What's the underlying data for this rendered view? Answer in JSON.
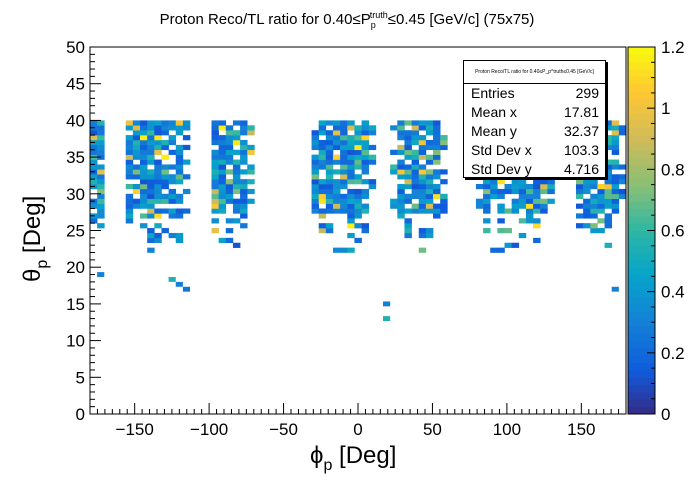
{
  "chart_data": {
    "type": "heatmap",
    "title": "Proton Reco/TL ratio for 0.40≤P_p^truth≤0.45 [GeV/c] (75x75)",
    "title_parts": {
      "prefix": "Proton Reco/TL ratio for 0.40≤P",
      "sub": "p",
      "sup": "truth",
      "suffix": "≤0.45 [GeV/c] (75x75)"
    },
    "xlabel": "ϕp [Deg]",
    "xlabel_parts": {
      "main": "ϕ",
      "sub": "p",
      "rest": " [Deg]"
    },
    "ylabel": "θp [Deg]",
    "ylabel_parts": {
      "main": "θ",
      "sub": "p",
      "rest": " [Deg]"
    },
    "xlim": [
      -180,
      180
    ],
    "ylim": [
      0,
      50
    ],
    "zlim": [
      0,
      1.2
    ],
    "x_ticks": [
      -150,
      -100,
      -50,
      0,
      50,
      100,
      150
    ],
    "x_tick_labels": [
      "−150",
      "−100",
      "−50",
      "0",
      "50",
      "100",
      "150"
    ],
    "y_ticks": [
      0,
      5,
      10,
      15,
      20,
      25,
      30,
      35,
      40,
      45,
      50
    ],
    "y_tick_labels": [
      "0",
      "5",
      "10",
      "15",
      "20",
      "25",
      "30",
      "35",
      "40",
      "45",
      "50"
    ],
    "z_ticks": [
      0,
      0.2,
      0.4,
      0.6,
      0.8,
      1,
      1.2
    ],
    "z_tick_labels": [
      "0",
      "0.2",
      "0.4",
      "0.6",
      "0.8",
      "1",
      "1.2"
    ],
    "colormap": "kBird",
    "bins": {
      "nx": 75,
      "ny": 75
    },
    "sectors_phi_ranges": [
      [
        -180,
        -170
      ],
      [
        -158,
        -112
      ],
      [
        -100,
        -72
      ],
      [
        -32,
        10
      ],
      [
        22,
        58
      ],
      [
        80,
        130
      ],
      [
        145,
        180
      ]
    ],
    "theta_range_populated": [
      17,
      40
    ],
    "isolated_points": [
      {
        "x": -127,
        "y": 18.5,
        "z": 0.55
      },
      {
        "x": -122,
        "y": 17.7,
        "z": 0.3
      },
      {
        "x": -115,
        "y": 17.0,
        "z": 0.25
      },
      {
        "x": 18,
        "y": 15.0,
        "z": 0.3
      },
      {
        "x": 18,
        "y": 13.0,
        "z": 0.55
      },
      {
        "x": -175,
        "y": 19.0,
        "z": 0.3
      },
      {
        "x": 175,
        "y": 17.0,
        "z": 0.3
      }
    ],
    "stats": {
      "title": "Proton Reco/TL ratio for 0.40≤P_p^truth≤0.45 [GeV/c]",
      "rows": [
        {
          "label": "Entries",
          "value": "299"
        },
        {
          "label": "Mean x",
          "value": "17.81"
        },
        {
          "label": "Mean y",
          "value": "32.37"
        },
        {
          "label": "Std Dev x",
          "value": "103.3"
        },
        {
          "label": "Std Dev y",
          "value": "4.716"
        }
      ]
    }
  }
}
